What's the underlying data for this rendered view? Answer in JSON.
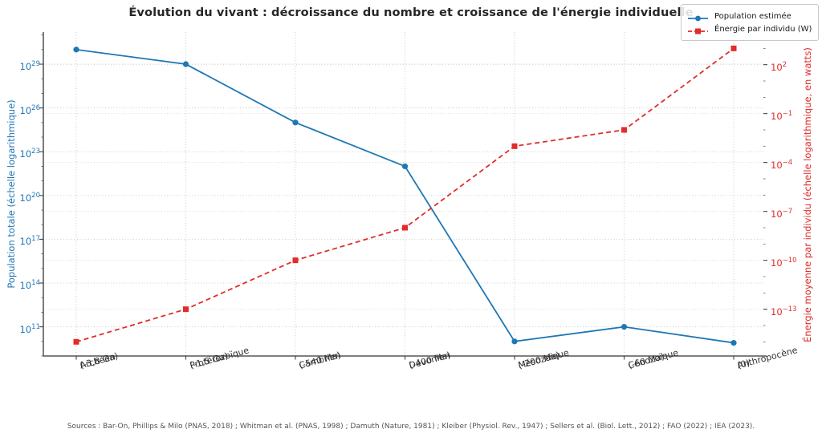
{
  "footer": "Sources : Bar-On, Phillips & Milo (PNAS, 2018) ; Whitman et al. (PNAS, 1998) ; Damuth (Nature, 1981) ; Kleiber (Physiol. Rev., 1947) ; Sellers et al. (Biol. Lett., 2012) ; FAO (2022) ; IEA (2023).",
  "colors": {
    "population": "#1f77b4",
    "energy": "#e02c2c",
    "grid": "#cccccc",
    "spine": "#333333",
    "tick": "#444444",
    "title_text": "#262626",
    "xtick_text": "#333333",
    "footer_text": "#545454"
  },
  "chart_data": {
    "type": "line",
    "title": "Évolution du vivant : décroissance du nombre et croissance de l'énergie individuelle",
    "categories": [
      {
        "era": "Archéen",
        "age": "(-3,8 Ga)"
      },
      {
        "era": "Protérozoïque",
        "age": "(-1,5 Ga)"
      },
      {
        "era": "Cambrien",
        "age": "(-540 Ma)"
      },
      {
        "era": "Dévonien",
        "age": "(-400 Ma)"
      },
      {
        "era": "Mésozoïque",
        "age": "(-200 Ma)"
      },
      {
        "era": "Cénozoïque",
        "age": "(-60 Ma)"
      },
      {
        "era": "Anthropocène",
        "age": "(0)"
      }
    ],
    "series": [
      {
        "name": "Population estimée",
        "axis": "left",
        "color": "#1f77b4",
        "marker": "circle",
        "linestyle": "solid",
        "values": [
          1e+30,
          1e+29,
          1e+25,
          1e+22,
          10000000000.0,
          100000000000.0,
          8000000000.0
        ]
      },
      {
        "name": "Énergie par individu (W)",
        "axis": "right",
        "color": "#e02c2c",
        "marker": "square",
        "linestyle": "dashed",
        "values": [
          1e-15,
          1e-13,
          1e-10,
          1e-08,
          0.001,
          0.01,
          1000.0
        ]
      }
    ],
    "axes": {
      "left": {
        "label": "Population totale (échelle logarithmique)",
        "color": "#1f77b4",
        "scale": "log",
        "tick_exponents": [
          29,
          26,
          23,
          20,
          17,
          14,
          11
        ],
        "ylim_exponents": [
          9,
          31.2
        ]
      },
      "right": {
        "label": "Énergie moyenne par individu (échelle logarithmique, en watts)",
        "color": "#e02c2c",
        "scale": "log",
        "tick_exponents": [
          2,
          -1,
          -4,
          -7,
          -10,
          -13
        ],
        "ylim_exponents": [
          -15.87,
          4.0
        ]
      }
    },
    "grid": true,
    "legend_position": "top-right"
  }
}
